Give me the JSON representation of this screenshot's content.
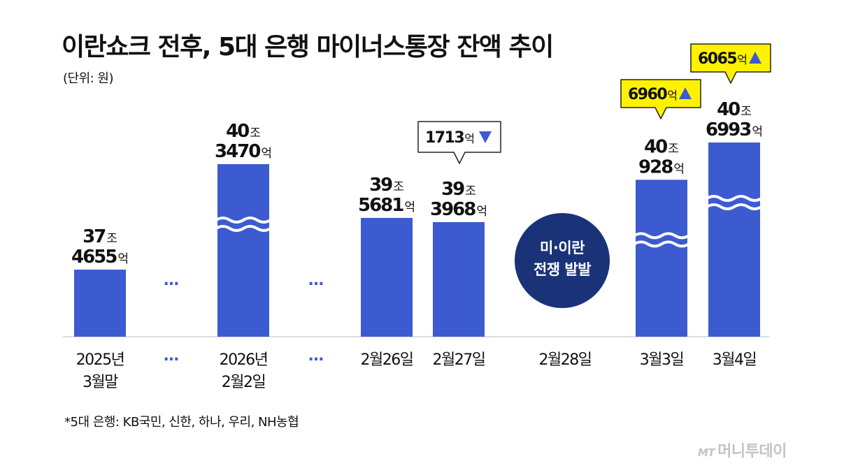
{
  "title": "이란쇼크 전후, 5대 은행 마이너스통장 잔액 추이",
  "unit": "(단위: 원)",
  "footnote": "*5대 은행: KB국민, 신한, 하나, 우리, NH농협",
  "watermark": {
    "mark": "MT",
    "name": "머니투데이"
  },
  "colors": {
    "bar": "#3d5bd0",
    "event_circle": "#1a3378",
    "callout_up": "#fff200",
    "callout_down": "#ffffff",
    "arrow": "#3d5bd0"
  },
  "event": {
    "lines": [
      "미·이란",
      "전쟁 발발"
    ],
    "category": "2월28일"
  },
  "chart_data": {
    "type": "bar",
    "categories": [
      [
        "2025년",
        "3월말"
      ],
      [
        "…"
      ],
      [
        "2026년",
        "2월2일"
      ],
      [
        "…"
      ],
      [
        "2월26일"
      ],
      [
        "2월27일"
      ],
      [
        "2월28일"
      ],
      [
        "3월3일"
      ],
      [
        "3월4일"
      ]
    ],
    "values": [
      374655,
      null,
      403470,
      null,
      395681,
      393968,
      null,
      400928,
      406993
    ],
    "value_unit": "억 원",
    "axis_break": [
      false,
      null,
      true,
      null,
      false,
      false,
      null,
      true,
      true
    ],
    "labels": [
      [
        {
          "big": "37",
          "small": "조"
        },
        {
          "big": "4655",
          "small": "억"
        }
      ],
      null,
      [
        {
          "big": "40",
          "small": "조"
        },
        {
          "big": "3470",
          "small": "억"
        }
      ],
      null,
      [
        {
          "big": "39",
          "small": "조"
        },
        {
          "big": "5681",
          "small": "억"
        }
      ],
      [
        {
          "big": "39",
          "small": "조"
        },
        {
          "big": "3968",
          "small": "억"
        }
      ],
      null,
      [
        {
          "big": "40",
          "small": "조"
        },
        {
          "big": "928",
          "small": "억"
        }
      ],
      [
        {
          "big": "40",
          "small": "조"
        },
        {
          "big": "6993",
          "small": "억"
        }
      ]
    ],
    "changes": [
      {
        "category_index": 5,
        "value": "1713",
        "unit": "억",
        "direction": "down"
      },
      {
        "category_index": 7,
        "value": "6960",
        "unit": "억",
        "direction": "up"
      },
      {
        "category_index": 8,
        "value": "6065",
        "unit": "억",
        "direction": "up"
      }
    ]
  }
}
